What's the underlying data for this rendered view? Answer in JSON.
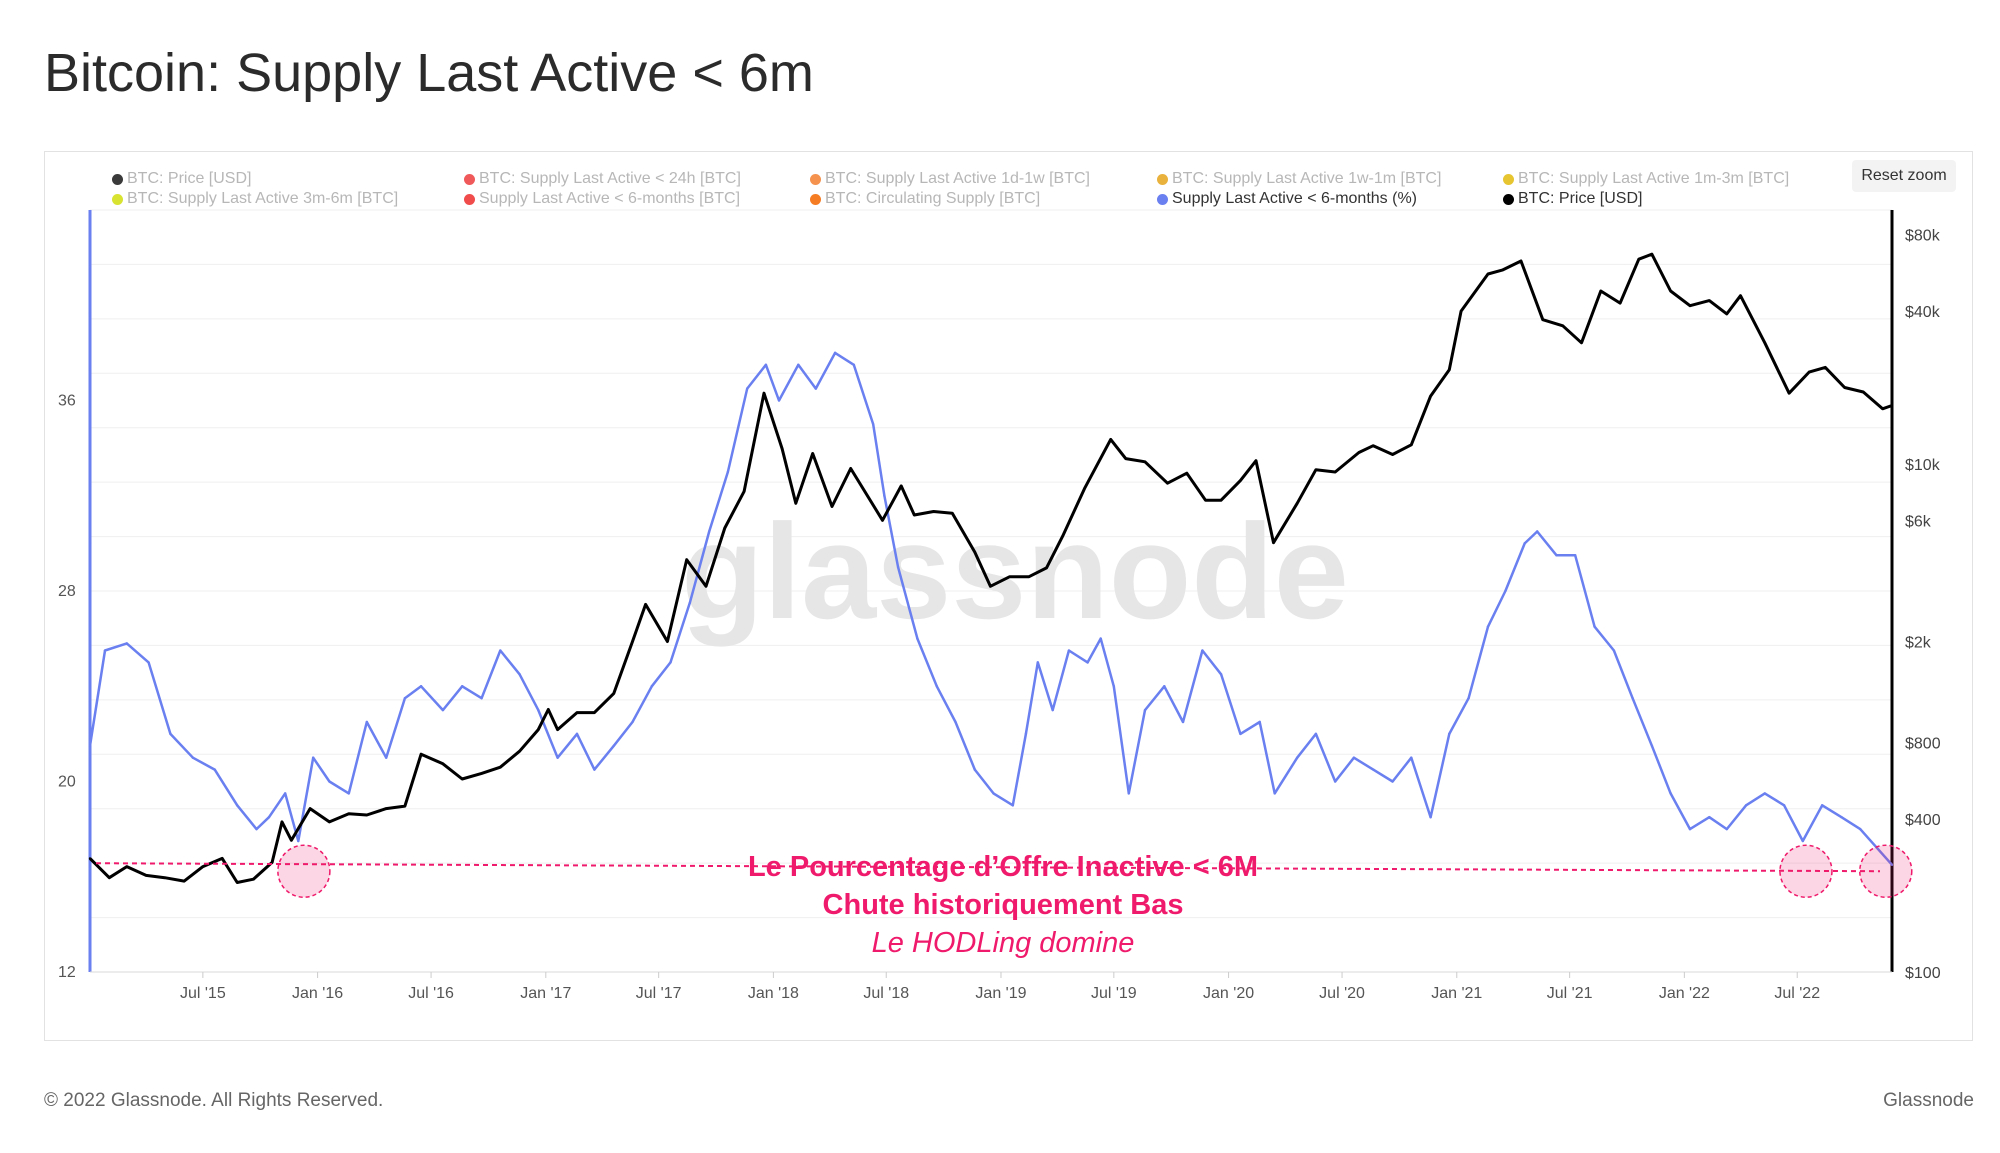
{
  "title": "Bitcoin: Supply Last Active < 6m",
  "reset_zoom_label": "Reset zoom",
  "footer": {
    "copyright": "© 2022 Glassnode. All Rights Reserved.",
    "brand": "Glassnode"
  },
  "watermark": "glassnode",
  "legend": [
    {
      "label": "BTC: Price [USD]",
      "color": "#3a3a3a",
      "active": false
    },
    {
      "label": "BTC: Supply Last Active < 24h [BTC]",
      "color": "#f0595a",
      "active": false
    },
    {
      "label": "BTC: Supply Last Active 1d-1w [BTC]",
      "color": "#f4924e",
      "active": false
    },
    {
      "label": "BTC: Supply Last Active 1w-1m [BTC]",
      "color": "#e9b23c",
      "active": false
    },
    {
      "label": "BTC: Supply Last Active 1m-3m [BTC]",
      "color": "#e6c531",
      "active": false
    },
    {
      "label": "BTC: Supply Last Active 3m-6m [BTC]",
      "color": "#d8e331",
      "active": false
    },
    {
      "label": "Supply Last Active < 6-months [BTC]",
      "color": "#f04c4c",
      "active": false
    },
    {
      "label": "BTC: Circulating Supply [BTC]",
      "color": "#f57c23",
      "active": false
    },
    {
      "label": "Supply Last Active < 6-months (%)",
      "color": "#6a7ff0",
      "active": true
    },
    {
      "label": "BTC: Price [USD]",
      "color": "#000000",
      "active": true
    }
  ],
  "annotation": {
    "line1": "Le Pourcentage d’Offre Inactive < 6M",
    "line2": "Chute historiquement Bas",
    "line3": "Le HODLing domine",
    "color": "#ef1a6b"
  },
  "chart_data": {
    "type": "line",
    "x_axis": {
      "start": "2015-01-01",
      "end": "2022-11-30",
      "tick_labels": [
        "Jul '15",
        "Jan '16",
        "Jul '16",
        "Jan '17",
        "Jul '17",
        "Jan '18",
        "Jul '18",
        "Jan '19",
        "Jul '19",
        "Jan '20",
        "Jul '20",
        "Jan '21",
        "Jul '21",
        "Jan '22",
        "Jul '22"
      ]
    },
    "y_left": {
      "min": 12,
      "max": 44,
      "ticks": [
        12,
        20,
        28,
        36
      ]
    },
    "y_right": {
      "scale": "log",
      "min": 100,
      "max": 100000,
      "tick_labels": [
        "$80k",
        "$40k",
        "$10k",
        "$6k",
        "$2k",
        "$800",
        "$400",
        "$100"
      ],
      "tick_values": [
        80000,
        40000,
        10000,
        6000,
        2000,
        800,
        400,
        100
      ]
    },
    "threshold_percent": 16.4,
    "series": [
      {
        "name": "Supply Last Active < 6-months (%)",
        "axis": "left",
        "color": "#6a7ff0",
        "points": [
          [
            "2015-01-01",
            21.5
          ],
          [
            "2015-01-25",
            25.5
          ],
          [
            "2015-03-01",
            25.8
          ],
          [
            "2015-04-05",
            25.0
          ],
          [
            "2015-05-10",
            22.0
          ],
          [
            "2015-06-15",
            21.0
          ],
          [
            "2015-07-20",
            20.5
          ],
          [
            "2015-08-25",
            19.0
          ],
          [
            "2015-09-25",
            18.0
          ],
          [
            "2015-10-15",
            18.5
          ],
          [
            "2015-11-10",
            19.5
          ],
          [
            "2015-12-01",
            17.5
          ],
          [
            "2015-12-25",
            21.0
          ],
          [
            "2016-01-20",
            20.0
          ],
          [
            "2016-02-20",
            19.5
          ],
          [
            "2016-03-20",
            22.5
          ],
          [
            "2016-04-20",
            21.0
          ],
          [
            "2016-05-20",
            23.5
          ],
          [
            "2016-06-15",
            24.0
          ],
          [
            "2016-07-20",
            23.0
          ],
          [
            "2016-08-20",
            24.0
          ],
          [
            "2016-09-20",
            23.5
          ],
          [
            "2016-10-20",
            25.5
          ],
          [
            "2016-11-20",
            24.5
          ],
          [
            "2016-12-20",
            23.0
          ],
          [
            "2017-01-20",
            21.0
          ],
          [
            "2017-02-20",
            22.0
          ],
          [
            "2017-03-20",
            20.5
          ],
          [
            "2017-04-20",
            21.5
          ],
          [
            "2017-05-20",
            22.5
          ],
          [
            "2017-06-20",
            24.0
          ],
          [
            "2017-07-20",
            25.0
          ],
          [
            "2017-08-20",
            27.5
          ],
          [
            "2017-09-20",
            30.5
          ],
          [
            "2017-10-20",
            33.0
          ],
          [
            "2017-11-20",
            36.5
          ],
          [
            "2017-12-20",
            37.5
          ],
          [
            "2018-01-10",
            36.0
          ],
          [
            "2018-02-10",
            37.5
          ],
          [
            "2018-03-10",
            36.5
          ],
          [
            "2018-04-10",
            38.0
          ],
          [
            "2018-05-10",
            37.5
          ],
          [
            "2018-06-10",
            35.0
          ],
          [
            "2018-06-28",
            32.0
          ],
          [
            "2018-07-20",
            29.0
          ],
          [
            "2018-08-20",
            26.0
          ],
          [
            "2018-09-20",
            24.0
          ],
          [
            "2018-10-20",
            22.5
          ],
          [
            "2018-11-20",
            20.5
          ],
          [
            "2018-12-20",
            19.5
          ],
          [
            "2019-01-20",
            19.0
          ],
          [
            "2019-02-10",
            22.0
          ],
          [
            "2019-03-01",
            25.0
          ],
          [
            "2019-03-25",
            23.0
          ],
          [
            "2019-04-20",
            25.5
          ],
          [
            "2019-05-20",
            25.0
          ],
          [
            "2019-06-10",
            26.0
          ],
          [
            "2019-07-01",
            24.0
          ],
          [
            "2019-07-25",
            19.5
          ],
          [
            "2019-08-20",
            23.0
          ],
          [
            "2019-09-20",
            24.0
          ],
          [
            "2019-10-20",
            22.5
          ],
          [
            "2019-11-20",
            25.5
          ],
          [
            "2019-12-20",
            24.5
          ],
          [
            "2020-01-20",
            22.0
          ],
          [
            "2020-02-20",
            22.5
          ],
          [
            "2020-03-15",
            19.5
          ],
          [
            "2020-04-20",
            21.0
          ],
          [
            "2020-05-20",
            22.0
          ],
          [
            "2020-06-20",
            20.0
          ],
          [
            "2020-07-20",
            21.0
          ],
          [
            "2020-08-20",
            20.5
          ],
          [
            "2020-09-20",
            20.0
          ],
          [
            "2020-10-20",
            21.0
          ],
          [
            "2020-11-20",
            18.5
          ],
          [
            "2020-12-20",
            22.0
          ],
          [
            "2021-01-20",
            23.5
          ],
          [
            "2021-02-20",
            26.5
          ],
          [
            "2021-03-20",
            28.0
          ],
          [
            "2021-04-20",
            30.0
          ],
          [
            "2021-05-10",
            30.5
          ],
          [
            "2021-06-10",
            29.5
          ],
          [
            "2021-07-10",
            29.5
          ],
          [
            "2021-08-10",
            26.5
          ],
          [
            "2021-09-10",
            25.5
          ],
          [
            "2021-10-10",
            23.5
          ],
          [
            "2021-11-10",
            21.5
          ],
          [
            "2021-12-10",
            19.5
          ],
          [
            "2022-01-10",
            18.0
          ],
          [
            "2022-02-10",
            18.5
          ],
          [
            "2022-03-10",
            18.0
          ],
          [
            "2022-04-10",
            19.0
          ],
          [
            "2022-05-10",
            19.5
          ],
          [
            "2022-06-10",
            19.0
          ],
          [
            "2022-07-10",
            17.5
          ],
          [
            "2022-08-10",
            19.0
          ],
          [
            "2022-09-10",
            18.5
          ],
          [
            "2022-10-10",
            18.0
          ],
          [
            "2022-11-30",
            16.5
          ]
        ]
      },
      {
        "name": "BTC: Price [USD]",
        "axis": "right",
        "color": "#000000",
        "points": [
          [
            "2015-01-01",
            280
          ],
          [
            "2015-02-01",
            235
          ],
          [
            "2015-03-01",
            260
          ],
          [
            "2015-04-01",
            240
          ],
          [
            "2015-05-01",
            235
          ],
          [
            "2015-06-01",
            228
          ],
          [
            "2015-07-01",
            260
          ],
          [
            "2015-08-01",
            280
          ],
          [
            "2015-08-25",
            225
          ],
          [
            "2015-09-20",
            232
          ],
          [
            "2015-10-20",
            270
          ],
          [
            "2015-11-05",
            390
          ],
          [
            "2015-11-20",
            330
          ],
          [
            "2015-12-20",
            440
          ],
          [
            "2016-01-20",
            390
          ],
          [
            "2016-02-20",
            420
          ],
          [
            "2016-03-20",
            415
          ],
          [
            "2016-04-20",
            440
          ],
          [
            "2016-05-20",
            450
          ],
          [
            "2016-06-15",
            720
          ],
          [
            "2016-07-20",
            660
          ],
          [
            "2016-08-20",
            575
          ],
          [
            "2016-09-20",
            605
          ],
          [
            "2016-10-20",
            640
          ],
          [
            "2016-11-20",
            740
          ],
          [
            "2016-12-20",
            900
          ],
          [
            "2017-01-05",
            1080
          ],
          [
            "2017-01-20",
            900
          ],
          [
            "2017-02-20",
            1050
          ],
          [
            "2017-03-20",
            1050
          ],
          [
            "2017-04-20",
            1250
          ],
          [
            "2017-05-20",
            2000
          ],
          [
            "2017-06-10",
            2800
          ],
          [
            "2017-07-15",
            2000
          ],
          [
            "2017-08-15",
            4200
          ],
          [
            "2017-09-15",
            3300
          ],
          [
            "2017-10-15",
            5600
          ],
          [
            "2017-11-15",
            7800
          ],
          [
            "2017-12-17",
            19000
          ],
          [
            "2018-01-15",
            11500
          ],
          [
            "2018-02-06",
            7000
          ],
          [
            "2018-03-05",
            11000
          ],
          [
            "2018-04-05",
            6800
          ],
          [
            "2018-05-05",
            9600
          ],
          [
            "2018-06-25",
            6000
          ],
          [
            "2018-07-25",
            8200
          ],
          [
            "2018-08-15",
            6300
          ],
          [
            "2018-09-15",
            6500
          ],
          [
            "2018-10-15",
            6400
          ],
          [
            "2018-11-20",
            4500
          ],
          [
            "2018-12-15",
            3300
          ],
          [
            "2019-01-15",
            3600
          ],
          [
            "2019-02-15",
            3600
          ],
          [
            "2019-03-15",
            3900
          ],
          [
            "2019-04-10",
            5200
          ],
          [
            "2019-05-15",
            8000
          ],
          [
            "2019-06-26",
            12500
          ],
          [
            "2019-07-20",
            10500
          ],
          [
            "2019-08-20",
            10200
          ],
          [
            "2019-09-25",
            8400
          ],
          [
            "2019-10-26",
            9200
          ],
          [
            "2019-11-25",
            7200
          ],
          [
            "2019-12-20",
            7200
          ],
          [
            "2020-01-20",
            8600
          ],
          [
            "2020-02-14",
            10300
          ],
          [
            "2020-03-13",
            4900
          ],
          [
            "2020-04-20",
            7000
          ],
          [
            "2020-05-20",
            9500
          ],
          [
            "2020-06-20",
            9300
          ],
          [
            "2020-07-28",
            11100
          ],
          [
            "2020-08-20",
            11800
          ],
          [
            "2020-09-20",
            10900
          ],
          [
            "2020-10-20",
            11900
          ],
          [
            "2020-11-20",
            18500
          ],
          [
            "2020-12-20",
            23500
          ],
          [
            "2021-01-08",
            40000
          ],
          [
            "2021-02-20",
            56000
          ],
          [
            "2021-03-15",
            58000
          ],
          [
            "2021-04-14",
            63000
          ],
          [
            "2021-05-19",
            37000
          ],
          [
            "2021-06-20",
            35000
          ],
          [
            "2021-07-20",
            30000
          ],
          [
            "2021-08-20",
            48000
          ],
          [
            "2021-09-20",
            43000
          ],
          [
            "2021-10-20",
            64000
          ],
          [
            "2021-11-10",
            67000
          ],
          [
            "2021-12-10",
            48000
          ],
          [
            "2022-01-10",
            42000
          ],
          [
            "2022-02-10",
            44000
          ],
          [
            "2022-03-10",
            39000
          ],
          [
            "2022-04-01",
            46000
          ],
          [
            "2022-05-10",
            30000
          ],
          [
            "2022-06-18",
            19000
          ],
          [
            "2022-07-20",
            23000
          ],
          [
            "2022-08-15",
            24000
          ],
          [
            "2022-09-15",
            20000
          ],
          [
            "2022-10-15",
            19200
          ],
          [
            "2022-11-15",
            16500
          ],
          [
            "2022-11-30",
            17000
          ]
        ]
      }
    ],
    "highlight_circles": [
      "2015-12-10",
      "2022-07-15",
      "2022-11-20"
    ]
  }
}
